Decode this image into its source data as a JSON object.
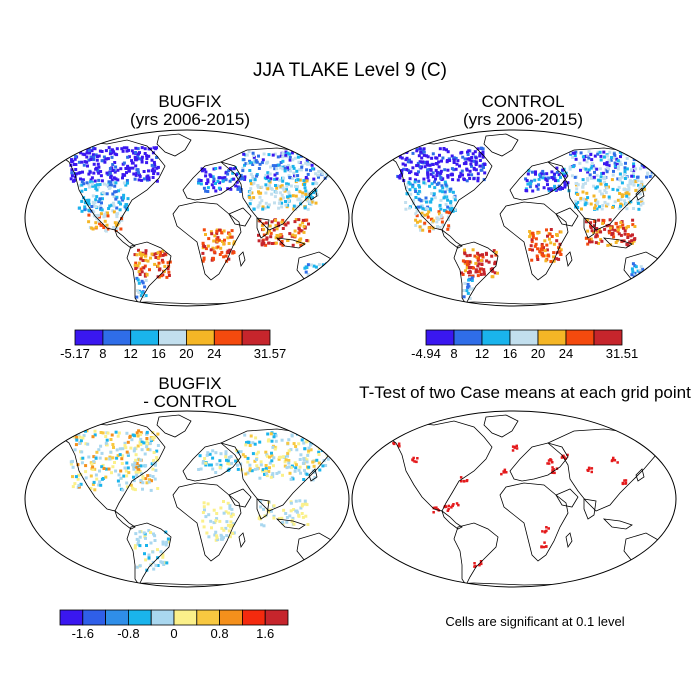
{
  "figure_title": "JJA TLAKE Level 9 (C)",
  "panels": [
    {
      "title_line1": "BUGFIX",
      "title_line2": "(yrs 2006-2015)"
    },
    {
      "title_line1": "CONTROL",
      "title_line2": "(yrs 2006-2015)"
    },
    {
      "title_line1": "BUGFIX",
      "title_line2": "- CONTROL"
    },
    {
      "title_line1": "T-Test of two Case means at each grid point",
      "title_line2": ""
    }
  ],
  "significance_note": "Cells are significant at 0.1 level",
  "colorbars": [
    {
      "name": "bugfix",
      "colors": [
        "#3a17f0",
        "#2f6de8",
        "#1ab4ec",
        "#c2dfee",
        "#f5b626",
        "#f44a0e",
        "#c6252c"
      ],
      "labels": [
        "-5.17",
        "8",
        "12",
        "16",
        "20",
        "24",
        "31.57"
      ]
    },
    {
      "name": "control",
      "colors": [
        "#3a17f0",
        "#2f6de8",
        "#1ab4ec",
        "#c2dfee",
        "#f5b626",
        "#f44a0e",
        "#c6252c"
      ],
      "labels": [
        "-4.94",
        "8",
        "12",
        "16",
        "20",
        "24",
        "31.51"
      ]
    },
    {
      "name": "difference",
      "colors": [
        "#3a17f0",
        "#2f5fe8",
        "#2f8ee8",
        "#1ab4ec",
        "#a9d7ef",
        "#fbf08a",
        "#f8c840",
        "#f4901c",
        "#f42a0e",
        "#c6252c"
      ],
      "labels": [
        "-1.6",
        "-0.8",
        "0",
        "0.8",
        "1.6"
      ]
    }
  ]
}
